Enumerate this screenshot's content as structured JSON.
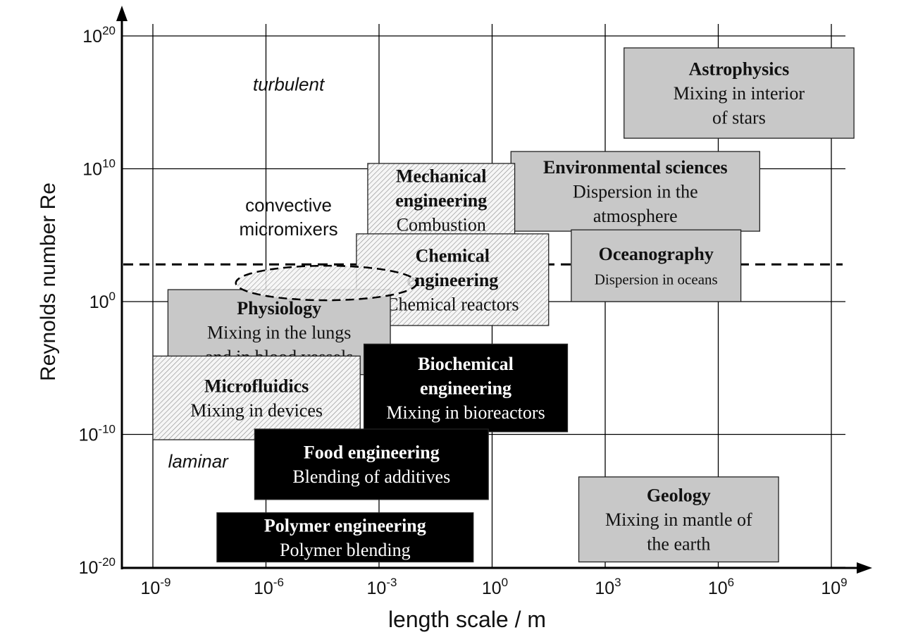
{
  "chart_data": {
    "type": "diagram",
    "xlabel": "length scale / m",
    "ylabel": "Reynolds number Re",
    "x_scale": "log",
    "y_scale": "log",
    "x_ticks": [
      {
        "exp": -9,
        "label": "10",
        "sup": "-9"
      },
      {
        "exp": -6,
        "label": "10",
        "sup": "-6"
      },
      {
        "exp": -3,
        "label": "10",
        "sup": "-3"
      },
      {
        "exp": 0,
        "label": "10",
        "sup": "0"
      },
      {
        "exp": 3,
        "label": "10",
        "sup": "3"
      },
      {
        "exp": 6,
        "label": "10",
        "sup": "6"
      },
      {
        "exp": 9,
        "label": "10",
        "sup": "9"
      }
    ],
    "y_ticks": [
      {
        "exp": 20,
        "label": "10",
        "sup": "20"
      },
      {
        "exp": 10,
        "label": "10",
        "sup": "10"
      },
      {
        "exp": 0,
        "label": "10",
        "sup": "0"
      },
      {
        "exp": -10,
        "label": "10",
        "sup": "-10"
      },
      {
        "exp": -20,
        "label": "10",
        "sup": "-20"
      }
    ],
    "grid": true,
    "regime_labels": [
      {
        "text": "turbulent",
        "x": -5.4,
        "y": 15.9
      },
      {
        "text": "convective",
        "x": -5.4,
        "y": 6.8
      },
      {
        "text": "micromixers",
        "x": -5.4,
        "y": 5.0
      },
      {
        "text": "laminar",
        "x": -7.8,
        "y": -12.5
      }
    ],
    "transition_line": {
      "y": 2.8,
      "style": "dashed"
    },
    "micromixer_ellipse": {
      "cx": -4.4,
      "cy": 1.4,
      "rx": 2.4,
      "ry": 1.3,
      "fill": "hatched"
    },
    "regions": [
      {
        "id": "astrophysics",
        "title": "Astrophysics",
        "lines": [
          "Mixing in interior",
          "of stars"
        ],
        "fill": "gray",
        "x": [
          3.5,
          9.6
        ],
        "y": [
          12.3,
          19.1
        ]
      },
      {
        "id": "environmental",
        "title": "Environmental sciences",
        "lines": [
          "Dispersion in the",
          "atmosphere"
        ],
        "fill": "gray",
        "x": [
          0.5,
          7.1
        ],
        "y": [
          5.3,
          11.3
        ]
      },
      {
        "id": "mechanical",
        "title": "Mechanical",
        "title2": "engineering",
        "lines": [
          "Combustion"
        ],
        "fill": "hatched",
        "x": [
          -3.3,
          0.6
        ],
        "y": [
          4.9,
          10.4
        ]
      },
      {
        "id": "oceanography",
        "title": "Oceanography",
        "lines": [
          "Dispersion in oceans"
        ],
        "fill": "gray",
        "x": [
          2.1,
          6.6
        ],
        "y": [
          0.0,
          5.4
        ]
      },
      {
        "id": "chemical",
        "title": "Chemical",
        "title2": "engineering",
        "lines": [
          "Chemical reactors"
        ],
        "fill": "hatched",
        "x": [
          -3.6,
          1.5
        ],
        "y": [
          -1.8,
          5.1
        ]
      },
      {
        "id": "physiology",
        "title": "Physiology",
        "lines": [
          "Mixing in the lungs",
          "and in blood vessels"
        ],
        "fill": "gray",
        "x": [
          -8.6,
          -2.7
        ],
        "y": [
          -5.5,
          0.9
        ]
      },
      {
        "id": "microfluidics",
        "title": "Microfluidics",
        "lines": [
          "Mixing in devices"
        ],
        "fill": "hatched",
        "x": [
          -9.0,
          -3.5
        ],
        "y": [
          -10.4,
          -4.1
        ]
      },
      {
        "id": "biochemical",
        "title": "Biochemical",
        "title2": "engineering",
        "lines": [
          "Mixing in bioreactors"
        ],
        "fill": "black",
        "x": [
          -3.4,
          2.0
        ],
        "y": [
          -9.8,
          -3.2
        ]
      },
      {
        "id": "food",
        "title": "Food engineering",
        "lines": [
          "Blending of additives"
        ],
        "fill": "black",
        "x": [
          -6.3,
          -0.1
        ],
        "y": [
          -14.9,
          -9.6
        ]
      },
      {
        "id": "polymer",
        "title": "Polymer engineering",
        "lines": [
          "Polymer blending"
        ],
        "fill": "black",
        "x": [
          -7.3,
          -0.5
        ],
        "y": [
          -19.6,
          -15.9
        ]
      },
      {
        "id": "geology",
        "title": "Geology",
        "lines": [
          "Mixing in mantle of",
          "the earth"
        ],
        "fill": "gray",
        "x": [
          2.3,
          7.6
        ],
        "y": [
          -19.6,
          -13.2
        ]
      }
    ]
  }
}
